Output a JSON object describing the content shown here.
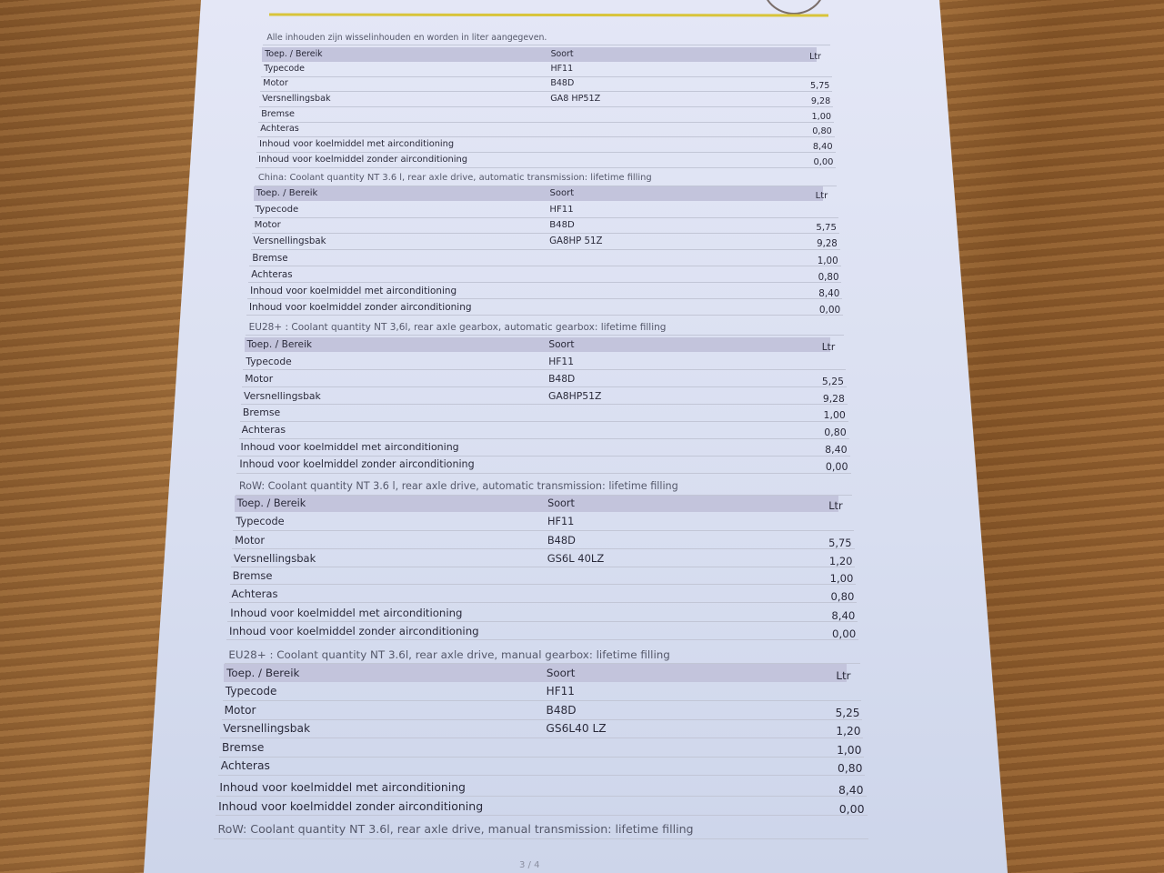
{
  "page_number": "3 / 4",
  "header_labels": {
    "col1": "Toep. / Bereik",
    "col2": "Soort",
    "col3": "Ltr"
  },
  "notes": [
    "Alle inhouden zijn wisselinhouden en worden in liter aangegeven.",
    "China: Coolant quantity NT 3.6 l, rear axle drive, automatic transmission: lifetime filling",
    "EU28+ : Coolant quantity NT 3,6l, rear axle gearbox, automatic gearbox: lifetime filling",
    "RoW: Coolant quantity NT 3.6 l, rear axle drive, automatic transmission: lifetime filling",
    "EU28+ : Coolant quantity NT 3.6l, rear axle drive, manual gearbox: lifetime filling",
    "RoW: Coolant quantity NT 3.6l, rear axle drive, manual transmission: lifetime filling"
  ],
  "tables": [
    {
      "rows": [
        {
          "label": "Typecode",
          "soort": "HF11",
          "ltr": ""
        },
        {
          "label": "Motor",
          "soort": "B48D",
          "ltr": "5,75"
        },
        {
          "label": "Versnellingsbak",
          "soort": "GA8 HP51Z",
          "ltr": "9,28"
        },
        {
          "label": "Bremse",
          "soort": "",
          "ltr": "1,00"
        },
        {
          "label": "Achteras",
          "soort": "",
          "ltr": "0,80"
        },
        {
          "label": "Inhoud voor koelmiddel met airconditioning",
          "soort": "",
          "ltr": "8,40"
        },
        {
          "label": "Inhoud voor koelmiddel zonder airconditioning",
          "soort": "",
          "ltr": "0,00"
        }
      ]
    },
    {
      "rows": [
        {
          "label": "Typecode",
          "soort": "HF11",
          "ltr": ""
        },
        {
          "label": "Motor",
          "soort": "B48D",
          "ltr": "5,75"
        },
        {
          "label": "Versnellingsbak",
          "soort": "GA8HP 51Z",
          "ltr": "9,28"
        },
        {
          "label": "Bremse",
          "soort": "",
          "ltr": "1,00"
        },
        {
          "label": "Achteras",
          "soort": "",
          "ltr": "0,80"
        },
        {
          "label": "Inhoud voor koelmiddel met airconditioning",
          "soort": "",
          "ltr": "8,40"
        },
        {
          "label": "Inhoud voor koelmiddel zonder airconditioning",
          "soort": "",
          "ltr": "0,00"
        }
      ]
    },
    {
      "rows": [
        {
          "label": "Typecode",
          "soort": "HF11",
          "ltr": ""
        },
        {
          "label": "Motor",
          "soort": "B48D",
          "ltr": "5,25"
        },
        {
          "label": "Versnellingsbak",
          "soort": "GA8HP51Z",
          "ltr": "9,28"
        },
        {
          "label": "Bremse",
          "soort": "",
          "ltr": "1,00"
        },
        {
          "label": "Achteras",
          "soort": "",
          "ltr": "0,80"
        },
        {
          "label": "Inhoud voor koelmiddel met airconditioning",
          "soort": "",
          "ltr": "8,40"
        },
        {
          "label": "Inhoud voor koelmiddel zonder airconditioning",
          "soort": "",
          "ltr": "0,00"
        }
      ]
    },
    {
      "rows": [
        {
          "label": "Typecode",
          "soort": "HF11",
          "ltr": ""
        },
        {
          "label": "Motor",
          "soort": "B48D",
          "ltr": "5,75"
        },
        {
          "label": "Versnellingsbak",
          "soort": "GS6L 40LZ",
          "ltr": "1,20"
        },
        {
          "label": "Bremse",
          "soort": "",
          "ltr": "1,00"
        },
        {
          "label": "Achteras",
          "soort": "",
          "ltr": "0,80"
        },
        {
          "label": "Inhoud voor koelmiddel met airconditioning",
          "soort": "",
          "ltr": "8,40"
        },
        {
          "label": "Inhoud voor koelmiddel zonder airconditioning",
          "soort": "",
          "ltr": "0,00"
        }
      ]
    },
    {
      "rows": [
        {
          "label": "Typecode",
          "soort": "HF11",
          "ltr": ""
        },
        {
          "label": "Motor",
          "soort": "B48D",
          "ltr": "5,25"
        },
        {
          "label": "Versnellingsbak",
          "soort": "GS6L40 LZ",
          "ltr": "1,20"
        },
        {
          "label": "Bremse",
          "soort": "",
          "ltr": "1,00"
        },
        {
          "label": "Achteras",
          "soort": "",
          "ltr": "0,80"
        },
        {
          "label": "Inhoud voor koelmiddel met airconditioning",
          "soort": "",
          "ltr": "8,40"
        },
        {
          "label": "Inhoud voor koelmiddel zonder airconditioning",
          "soort": "",
          "ltr": "0,00"
        }
      ]
    }
  ]
}
